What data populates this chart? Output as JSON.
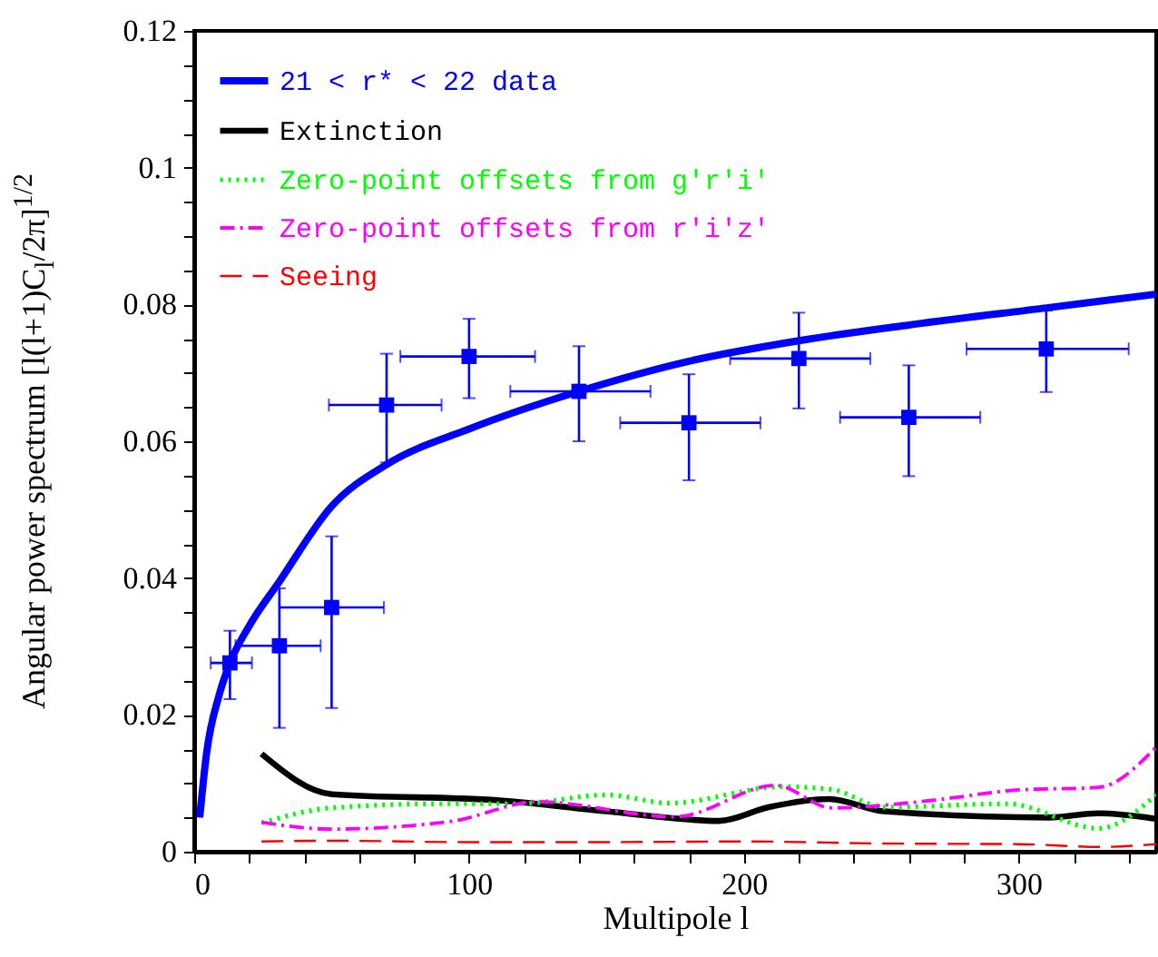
{
  "chart_data": {
    "type": "scatter",
    "xlabel": "Multipole l",
    "ylabel": "Angular power spectrum [l(l+1)C$_{l}$/2π]$^{1/2}$",
    "xlim": [
      0,
      350
    ],
    "xticks": [
      0,
      {
        "value": 20,
        "label": null
      },
      {
        "value": 40,
        "label": null
      },
      {
        "value": 60,
        "label": null
      },
      {
        "value": 80,
        "label": null
      },
      100,
      {
        "value": 120,
        "label": null
      },
      {
        "value": 140,
        "label": null
      },
      {
        "value": 160,
        "label": null
      },
      {
        "value": 180,
        "label": null
      },
      200,
      {
        "value": 220,
        "label": null
      },
      {
        "value": 240,
        "label": null
      },
      {
        "value": 260,
        "label": null
      },
      {
        "value": 280,
        "label": null
      },
      300,
      {
        "value": 320,
        "label": null
      },
      {
        "value": 340,
        "label": null
      }
    ],
    "ylim": [
      0,
      0.12
    ],
    "yticks": [
      0,
      {
        "value": 0.005,
        "label": null
      },
      {
        "value": 0.01,
        "label": null
      },
      {
        "value": 0.015,
        "label": null
      },
      0.02,
      {
        "value": 0.025,
        "label": null
      },
      {
        "value": 0.03,
        "label": null
      },
      {
        "value": 0.035,
        "label": null
      },
      0.04,
      {
        "value": 0.045,
        "label": null
      },
      {
        "value": 0.05,
        "label": null
      },
      {
        "value": 0.055,
        "label": null
      },
      0.06,
      {
        "value": 0.065,
        "label": null
      },
      {
        "value": 0.07,
        "label": null
      },
      {
        "value": 0.075,
        "label": null
      },
      0.08,
      {
        "value": 0.085,
        "label": null
      },
      {
        "value": 0.09,
        "label": null
      },
      {
        "value": 0.095,
        "label": null
      },
      0.1,
      {
        "value": 0.105,
        "label": null
      },
      {
        "value": 0.11,
        "label": null
      },
      {
        "value": 0.115,
        "label": null
      },
      0.12
    ],
    "legend": "top left",
    "grid": false,
    "series": [
      {
        "color": "#0000ff",
        "marker": "square",
        "x": [
          13,
          31,
          50,
          70,
          100,
          140,
          180,
          220,
          260,
          310
        ],
        "values": [
          0.0276,
          0.0301,
          0.0357,
          0.0653,
          0.0724,
          0.0673,
          0.0627,
          0.0721,
          0.0635,
          0.0735
        ],
        "errors": [
          [
            0.0223,
            0.0323
          ],
          [
            0.0181,
            0.0385
          ],
          [
            0.021,
            0.0461
          ],
          [
            0.0569,
            0.0728
          ],
          [
            0.0663,
            0.0779
          ],
          [
            0.06,
            0.0739
          ],
          [
            0.0543,
            0.0698
          ],
          [
            0.0648,
            0.0788
          ],
          [
            0.0549,
            0.0711
          ],
          [
            0.0672,
            0.0791
          ]
        ],
        "xerrors": [
          [
            6,
            21
          ],
          [
            15,
            46
          ],
          [
            31,
            69
          ],
          [
            49,
            90
          ],
          [
            75,
            124
          ],
          [
            115,
            166
          ],
          [
            155,
            206
          ],
          [
            195,
            246
          ],
          [
            235,
            286
          ],
          [
            281,
            340
          ]
        ]
      },
      {
        "type": "line",
        "name": "21 < r* < 22 data",
        "color": "#0000ff",
        "line_style": "solid",
        "x": [
          2,
          4.5,
          9,
          13,
          20,
          31,
          50,
          70,
          100,
          140,
          180,
          220,
          260,
          310,
          350
        ],
        "values": [
          0.005,
          0.0144,
          0.0228,
          0.0276,
          0.033,
          0.0395,
          0.0505,
          0.0566,
          0.0618,
          0.0673,
          0.0717,
          0.0747,
          0.077,
          0.0795,
          0.0815
        ]
      },
      {
        "type": "line",
        "name": "Extinction",
        "color": "#000000",
        "line_style": "solid",
        "x": [
          24.5,
          50,
          111,
          150,
          191,
          209,
          231,
          251,
          311,
          329,
          350
        ],
        "values": [
          0.0143,
          0.0084,
          0.0075,
          0.0059,
          0.0045,
          0.0065,
          0.0077,
          0.0059,
          0.005,
          0.0056,
          0.0048
        ]
      },
      {
        "type": "line",
        "name": "Zero-point offsets from g'r'i'",
        "color": "#00ff00",
        "line_style": "dotted",
        "x": [
          24.5,
          50,
          91,
          118,
          150,
          173,
          214,
          232,
          251,
          296,
          329,
          350
        ],
        "values": [
          0.0042,
          0.0064,
          0.007,
          0.007,
          0.0083,
          0.0071,
          0.0095,
          0.0091,
          0.0065,
          0.007,
          0.0034,
          0.0083
        ]
      },
      {
        "type": "line",
        "name": "Zero-point offsets from r'i'z'",
        "color": "#ff00ff",
        "line_style": "dashdot",
        "x": [
          24.5,
          49.5,
          93,
          125,
          175,
          211.6,
          232,
          268.5,
          299,
          329,
          350
        ],
        "values": [
          0.0043,
          0.0033,
          0.0044,
          0.0073,
          0.0051,
          0.0097,
          0.0064,
          0.0075,
          0.009,
          0.0094,
          0.0153
        ]
      },
      {
        "type": "line",
        "name": "Seeing",
        "color": "#ff0000",
        "line_style": "dashed",
        "x": [
          24.5,
          50,
          100,
          150,
          200,
          250,
          300,
          330,
          350
        ],
        "values": [
          0.0015,
          0.0016,
          0.0014,
          0.0014,
          0.0015,
          0.0012,
          0.0011,
          0.0007,
          0.0011
        ]
      }
    ]
  }
}
